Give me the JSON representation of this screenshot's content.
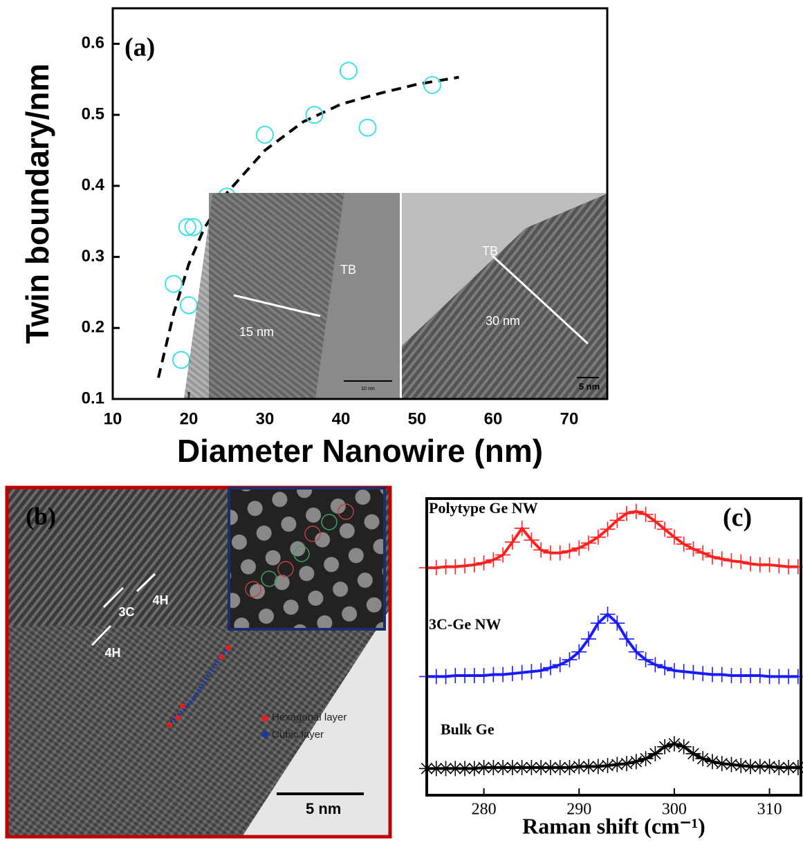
{
  "chart_data": [
    {
      "type": "scatter",
      "panel_label": "(a)",
      "xlabel": "Diameter Nanowire (nm)",
      "ylabel": "Twin boundary/nm",
      "x": [
        19,
        18,
        20,
        19.8,
        20.6,
        25,
        30,
        36.5,
        41,
        43.5,
        52
      ],
      "values": [
        0.155,
        0.262,
        0.232,
        0.342,
        0.342,
        0.385,
        0.472,
        0.5,
        0.562,
        0.482,
        0.542
      ],
      "color": "#3ee0e8",
      "fit_x": [
        16,
        18,
        20,
        22,
        25,
        30,
        35,
        40,
        45,
        50,
        55.5
      ],
      "fit_values": [
        0.13,
        0.22,
        0.29,
        0.34,
        0.39,
        0.45,
        0.49,
        0.515,
        0.53,
        0.543,
        0.553
      ],
      "fit_color": "#000000",
      "xlim": [
        10,
        75
      ],
      "xticks": [
        10,
        20,
        30,
        40,
        50,
        60,
        70
      ],
      "ylim": [
        0.1,
        0.65
      ],
      "yticks": [
        0.1,
        0.2,
        0.3,
        0.4,
        0.5,
        0.6
      ]
    },
    {
      "type": "line",
      "panel_label": "(c)",
      "xlabel": "Raman shift (cm⁻¹)",
      "x": [
        274,
        275,
        276,
        277,
        278,
        279,
        280,
        281,
        282,
        283,
        284,
        285,
        286,
        287,
        288,
        289,
        290,
        291,
        292,
        293,
        294,
        295,
        296,
        297,
        298,
        299,
        300,
        301,
        302,
        303,
        304,
        305,
        306,
        307,
        308,
        309,
        310,
        311,
        312,
        313
      ],
      "series": [
        {
          "name": "Polytype Ge NW",
          "color": "#ff2020",
          "marker": "+",
          "values": [
            2.3,
            2.3,
            2.31,
            2.31,
            2.32,
            2.33,
            2.35,
            2.38,
            2.43,
            2.56,
            2.7,
            2.58,
            2.48,
            2.45,
            2.45,
            2.47,
            2.5,
            2.55,
            2.61,
            2.69,
            2.78,
            2.85,
            2.87,
            2.84,
            2.77,
            2.69,
            2.61,
            2.54,
            2.49,
            2.45,
            2.41,
            2.39,
            2.37,
            2.36,
            2.34,
            2.33,
            2.33,
            2.32,
            2.31,
            2.31
          ]
        },
        {
          "name": "3C-Ge NW",
          "color": "#1a1aff",
          "marker": "+",
          "values": [
            1.2,
            1.2,
            1.2,
            1.21,
            1.21,
            1.21,
            1.21,
            1.22,
            1.22,
            1.23,
            1.24,
            1.25,
            1.26,
            1.29,
            1.32,
            1.37,
            1.45,
            1.58,
            1.74,
            1.83,
            1.74,
            1.58,
            1.45,
            1.37,
            1.32,
            1.29,
            1.26,
            1.25,
            1.24,
            1.23,
            1.22,
            1.22,
            1.21,
            1.21,
            1.21,
            1.21,
            1.2,
            1.2,
            1.2,
            1.2
          ]
        },
        {
          "name": "Bulk Ge",
          "color": "#000000",
          "marker": "*",
          "values": [
            0.27,
            0.27,
            0.27,
            0.27,
            0.27,
            0.27,
            0.28,
            0.28,
            0.28,
            0.28,
            0.28,
            0.28,
            0.28,
            0.28,
            0.28,
            0.28,
            0.29,
            0.29,
            0.29,
            0.3,
            0.31,
            0.32,
            0.34,
            0.37,
            0.42,
            0.49,
            0.52,
            0.49,
            0.42,
            0.37,
            0.34,
            0.32,
            0.31,
            0.3,
            0.29,
            0.29,
            0.29,
            0.28,
            0.28,
            0.28
          ]
        }
      ],
      "xlim": [
        274,
        313.3
      ],
      "xticks": [
        280,
        290,
        300,
        310
      ],
      "ylim": [
        0,
        3
      ]
    }
  ],
  "inset_a": {
    "left": {
      "label": "TB",
      "width": "15 nm",
      "scale": "10 nm"
    },
    "right": {
      "label": "TB",
      "width": "30 nm",
      "scale": "5 nm"
    }
  },
  "panel_b": {
    "label": "(b)",
    "marks": [
      "3C",
      "4H",
      "4H"
    ],
    "legend": [
      "Hexagonal layer",
      "Cubic layer"
    ],
    "scale": "5 nm"
  }
}
